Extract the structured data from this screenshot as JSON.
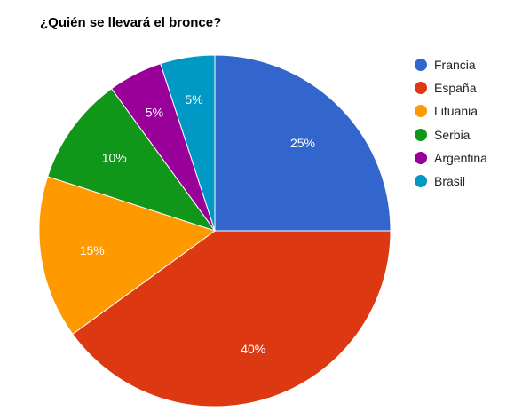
{
  "chart_data": {
    "type": "pie",
    "title": "¿Quién se llevará el bronce?",
    "slices": [
      {
        "label": "Francia",
        "value": 25,
        "value_label": "25%",
        "color": "#3366cc"
      },
      {
        "label": "España",
        "value": 40,
        "value_label": "40%",
        "color": "#dc3912"
      },
      {
        "label": "Lituania",
        "value": 15,
        "value_label": "15%",
        "color": "#ff9900"
      },
      {
        "label": "Serbia",
        "value": 10,
        "value_label": "10%",
        "color": "#109618"
      },
      {
        "label": "Argentina",
        "value": 5,
        "value_label": "5%",
        "color": "#990099"
      },
      {
        "label": "Brasil",
        "value": 5,
        "value_label": "5%",
        "color": "#0099c6"
      }
    ],
    "legend_position": "right"
  }
}
